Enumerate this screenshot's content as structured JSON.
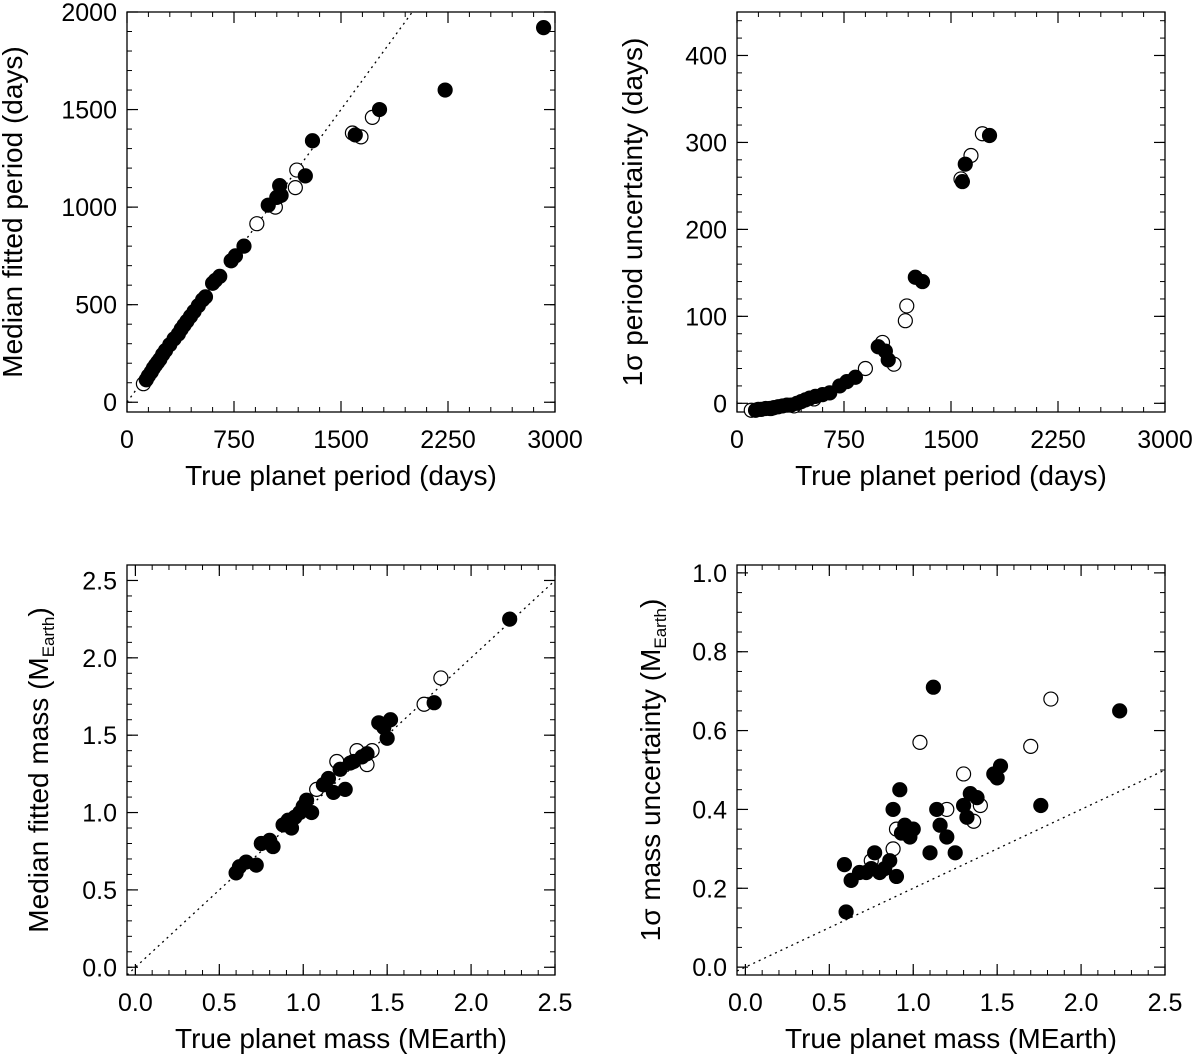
{
  "chart_data": [
    {
      "id": "period-median",
      "type": "scatter",
      "xlabel": "True planet period (days)",
      "ylabel": "Median fitted period (days)",
      "ylabel_sub": "",
      "ylabel_tail": "",
      "xlim": [
        0,
        3000
      ],
      "ylim": [
        -50,
        2000
      ],
      "xticks": [
        0,
        750,
        1500,
        2250,
        3000
      ],
      "yticks": [
        0,
        500,
        1000,
        1500,
        2000
      ],
      "xtick_labels": [
        "0",
        "750",
        "1500",
        "2250",
        "3000"
      ],
      "ytick_labels": [
        "0",
        "500",
        "1000",
        "1500",
        "2000"
      ],
      "x_minor_step": 150,
      "y_minor_step": 100,
      "reference_line": {
        "style": "dotted",
        "slope": 1,
        "intercept": 0
      },
      "series": [
        {
          "marker": "filled-circle",
          "points": [
            [
              135,
              115
            ],
            [
              150,
              135
            ],
            [
              170,
              155
            ],
            [
              185,
              175
            ],
            [
              200,
              190
            ],
            [
              215,
              205
            ],
            [
              230,
              220
            ],
            [
              250,
              245
            ],
            [
              270,
              265
            ],
            [
              300,
              295
            ],
            [
              330,
              325
            ],
            [
              360,
              350
            ],
            [
              380,
              375
            ],
            [
              400,
              395
            ],
            [
              420,
              415
            ],
            [
              445,
              440
            ],
            [
              470,
              465
            ],
            [
              500,
              495
            ],
            [
              530,
              525
            ],
            [
              550,
              540
            ],
            [
              600,
              610
            ],
            [
              620,
              625
            ],
            [
              650,
              645
            ],
            [
              730,
              725
            ],
            [
              760,
              750
            ],
            [
              820,
              800
            ],
            [
              990,
              1010
            ],
            [
              1050,
              1050
            ],
            [
              1070,
              1110
            ],
            [
              1080,
              1060
            ],
            [
              1250,
              1160
            ],
            [
              1300,
              1340
            ],
            [
              1600,
              1370
            ],
            [
              1770,
              1500
            ],
            [
              2230,
              1600
            ],
            [
              2920,
              1920
            ]
          ]
        },
        {
          "marker": "open-circle",
          "points": [
            [
              115,
              95
            ],
            [
              910,
              915
            ],
            [
              1040,
              1000
            ],
            [
              1180,
              1100
            ],
            [
              1190,
              1190
            ],
            [
              1580,
              1380
            ],
            [
              1640,
              1360
            ],
            [
              1720,
              1460
            ]
          ]
        }
      ]
    },
    {
      "id": "period-uncertainty",
      "type": "scatter",
      "xlabel": "True planet period (days)",
      "ylabel": "1σ period uncertainty (days)",
      "ylabel_sub": "",
      "ylabel_tail": "",
      "xlim": [
        0,
        3000
      ],
      "ylim": [
        -10,
        450
      ],
      "xticks": [
        0,
        750,
        1500,
        2250,
        3000
      ],
      "yticks": [
        0,
        100,
        200,
        300,
        400
      ],
      "xtick_labels": [
        "0",
        "750",
        "1500",
        "2250",
        "3000"
      ],
      "ytick_labels": [
        "0",
        "100",
        "200",
        "300",
        "400"
      ],
      "x_minor_step": 150,
      "y_minor_step": 20,
      "reference_line": null,
      "series": [
        {
          "marker": "filled-circle",
          "points": [
            [
              130,
              -8
            ],
            [
              170,
              -7
            ],
            [
              200,
              -6
            ],
            [
              230,
              -6
            ],
            [
              260,
              -5
            ],
            [
              290,
              -4
            ],
            [
              320,
              -3
            ],
            [
              350,
              -2
            ],
            [
              380,
              -2
            ],
            [
              420,
              0
            ],
            [
              450,
              2
            ],
            [
              480,
              4
            ],
            [
              510,
              6
            ],
            [
              550,
              8
            ],
            [
              600,
              10
            ],
            [
              650,
              12
            ],
            [
              720,
              20
            ],
            [
              770,
              25
            ],
            [
              830,
              30
            ],
            [
              990,
              65
            ],
            [
              1040,
              60
            ],
            [
              1060,
              50
            ],
            [
              1250,
              145
            ],
            [
              1300,
              140
            ],
            [
              1580,
              255
            ],
            [
              1600,
              275
            ],
            [
              1770,
              308
            ]
          ]
        },
        {
          "marker": "open-circle",
          "points": [
            [
              100,
              -8
            ],
            [
              150,
              -7
            ],
            [
              240,
              -6
            ],
            [
              400,
              -3
            ],
            [
              540,
              5
            ],
            [
              900,
              40
            ],
            [
              1020,
              70
            ],
            [
              1100,
              45
            ],
            [
              1180,
              95
            ],
            [
              1190,
              112
            ],
            [
              1570,
              258
            ],
            [
              1640,
              285
            ],
            [
              1720,
              310
            ]
          ]
        }
      ]
    },
    {
      "id": "mass-median",
      "type": "scatter",
      "xlabel": "True planet mass (MEarth)",
      "ylabel": "Median fitted mass (M",
      "ylabel_sub": "Earth",
      "ylabel_tail": ")",
      "xlim": [
        -0.05,
        2.5
      ],
      "ylim": [
        -0.05,
        2.6
      ],
      "xticks": [
        0,
        0.5,
        1.0,
        1.5,
        2.0,
        2.5
      ],
      "yticks": [
        0,
        0.5,
        1.0,
        1.5,
        2.0,
        2.5
      ],
      "xtick_labels": [
        "0.0",
        "0.5",
        "1.0",
        "1.5",
        "2.0",
        "2.5"
      ],
      "ytick_labels": [
        "0.0",
        "0.5",
        "1.0",
        "1.5",
        "2.0",
        "2.5"
      ],
      "x_minor_step": 0.1,
      "y_minor_step": 0.1,
      "reference_line": {
        "style": "dotted",
        "slope": 1,
        "intercept": 0
      },
      "series": [
        {
          "marker": "filled-circle",
          "points": [
            [
              0.6,
              0.61
            ],
            [
              0.62,
              0.65
            ],
            [
              0.66,
              0.68
            ],
            [
              0.72,
              0.66
            ],
            [
              0.75,
              0.8
            ],
            [
              0.8,
              0.82
            ],
            [
              0.82,
              0.78
            ],
            [
              0.88,
              0.92
            ],
            [
              0.91,
              0.95
            ],
            [
              0.93,
              0.9
            ],
            [
              0.95,
              0.97
            ],
            [
              0.98,
              1.0
            ],
            [
              1.0,
              1.04
            ],
            [
              1.02,
              1.08
            ],
            [
              1.05,
              1.0
            ],
            [
              1.12,
              1.18
            ],
            [
              1.15,
              1.22
            ],
            [
              1.18,
              1.13
            ],
            [
              1.22,
              1.28
            ],
            [
              1.25,
              1.15
            ],
            [
              1.28,
              1.32
            ],
            [
              1.3,
              1.33
            ],
            [
              1.35,
              1.36
            ],
            [
              1.38,
              1.38
            ],
            [
              1.45,
              1.58
            ],
            [
              1.48,
              1.55
            ],
            [
              1.5,
              1.48
            ],
            [
              1.52,
              1.6
            ],
            [
              1.78,
              1.71
            ],
            [
              2.23,
              2.25
            ]
          ]
        },
        {
          "marker": "open-circle",
          "points": [
            [
              1.08,
              1.15
            ],
            [
              1.2,
              1.33
            ],
            [
              1.32,
              1.4
            ],
            [
              1.38,
              1.31
            ],
            [
              1.41,
              1.4
            ],
            [
              1.72,
              1.7
            ],
            [
              1.82,
              1.87
            ]
          ]
        }
      ]
    },
    {
      "id": "mass-uncertainty",
      "type": "scatter",
      "xlabel": "True planet mass (MEarth)",
      "ylabel": "1σ mass uncertainty (M",
      "ylabel_sub": "Earth",
      "ylabel_tail": ")",
      "xlim": [
        -0.05,
        2.5
      ],
      "ylim": [
        -0.02,
        1.02
      ],
      "xticks": [
        0,
        0.5,
        1.0,
        1.5,
        2.0,
        2.5
      ],
      "yticks": [
        0,
        0.2,
        0.4,
        0.6,
        0.8,
        1.0
      ],
      "xtick_labels": [
        "0.0",
        "0.5",
        "1.0",
        "1.5",
        "2.0",
        "2.5"
      ],
      "ytick_labels": [
        "0.0",
        "0.2",
        "0.4",
        "0.6",
        "0.8",
        "1.0"
      ],
      "x_minor_step": 0.1,
      "y_minor_step": 0.05,
      "reference_line": {
        "style": "dotted",
        "slope": 0.2,
        "intercept": 0
      },
      "series": [
        {
          "marker": "filled-circle",
          "points": [
            [
              0.59,
              0.26
            ],
            [
              0.6,
              0.14
            ],
            [
              0.63,
              0.22
            ],
            [
              0.68,
              0.24
            ],
            [
              0.72,
              0.24
            ],
            [
              0.75,
              0.25
            ],
            [
              0.77,
              0.29
            ],
            [
              0.8,
              0.24
            ],
            [
              0.83,
              0.25
            ],
            [
              0.86,
              0.27
            ],
            [
              0.88,
              0.4
            ],
            [
              0.9,
              0.23
            ],
            [
              0.92,
              0.45
            ],
            [
              0.93,
              0.34
            ],
            [
              0.95,
              0.36
            ],
            [
              0.98,
              0.33
            ],
            [
              1.0,
              0.35
            ],
            [
              1.1,
              0.29
            ],
            [
              1.12,
              0.71
            ],
            [
              1.14,
              0.4
            ],
            [
              1.16,
              0.36
            ],
            [
              1.2,
              0.33
            ],
            [
              1.25,
              0.29
            ],
            [
              1.3,
              0.41
            ],
            [
              1.32,
              0.38
            ],
            [
              1.34,
              0.44
            ],
            [
              1.38,
              0.43
            ],
            [
              1.48,
              0.49
            ],
            [
              1.5,
              0.48
            ],
            [
              1.52,
              0.51
            ],
            [
              1.76,
              0.41
            ],
            [
              2.23,
              0.65
            ]
          ]
        },
        {
          "marker": "open-circle",
          "points": [
            [
              0.75,
              0.27
            ],
            [
              0.88,
              0.3
            ],
            [
              0.9,
              0.35
            ],
            [
              1.04,
              0.57
            ],
            [
              1.2,
              0.4
            ],
            [
              1.3,
              0.49
            ],
            [
              1.36,
              0.37
            ],
            [
              1.4,
              0.41
            ],
            [
              1.7,
              0.56
            ],
            [
              1.82,
              0.68
            ]
          ]
        }
      ]
    }
  ]
}
